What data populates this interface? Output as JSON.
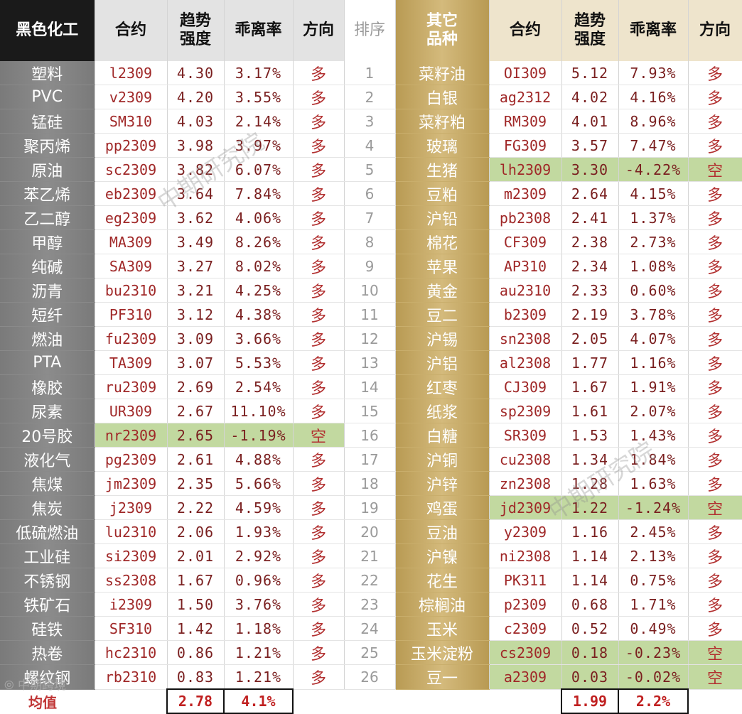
{
  "left": {
    "headers": [
      "黑色化工",
      "合约",
      "趋势\n强度",
      "乖离率",
      "方向"
    ],
    "rows": [
      {
        "name": "塑料",
        "code": "l2309",
        "strength": "4.30",
        "dev": "3.17%",
        "dir": "多",
        "hl": false
      },
      {
        "name": "PVC",
        "code": "v2309",
        "strength": "4.20",
        "dev": "3.55%",
        "dir": "多",
        "hl": false
      },
      {
        "name": "锰硅",
        "code": "SM310",
        "strength": "4.03",
        "dev": "2.14%",
        "dir": "多",
        "hl": false
      },
      {
        "name": "聚丙烯",
        "code": "pp2309",
        "strength": "3.98",
        "dev": "3.97%",
        "dir": "多",
        "hl": false
      },
      {
        "name": "原油",
        "code": "sc2309",
        "strength": "3.82",
        "dev": "6.07%",
        "dir": "多",
        "hl": false
      },
      {
        "name": "苯乙烯",
        "code": "eb2309",
        "strength": "3.64",
        "dev": "7.84%",
        "dir": "多",
        "hl": false
      },
      {
        "name": "乙二醇",
        "code": "eg2309",
        "strength": "3.62",
        "dev": "4.06%",
        "dir": "多",
        "hl": false
      },
      {
        "name": "甲醇",
        "code": "MA309",
        "strength": "3.49",
        "dev": "8.26%",
        "dir": "多",
        "hl": false
      },
      {
        "name": "纯碱",
        "code": "SA309",
        "strength": "3.27",
        "dev": "8.02%",
        "dir": "多",
        "hl": false
      },
      {
        "name": "沥青",
        "code": "bu2310",
        "strength": "3.21",
        "dev": "4.25%",
        "dir": "多",
        "hl": false
      },
      {
        "name": "短纤",
        "code": "PF310",
        "strength": "3.12",
        "dev": "4.38%",
        "dir": "多",
        "hl": false
      },
      {
        "name": "燃油",
        "code": "fu2309",
        "strength": "3.09",
        "dev": "3.66%",
        "dir": "多",
        "hl": false
      },
      {
        "name": "PTA",
        "code": "TA309",
        "strength": "3.07",
        "dev": "5.53%",
        "dir": "多",
        "hl": false
      },
      {
        "name": "橡胶",
        "code": "ru2309",
        "strength": "2.69",
        "dev": "2.54%",
        "dir": "多",
        "hl": false
      },
      {
        "name": "尿素",
        "code": "UR309",
        "strength": "2.67",
        "dev": "11.10%",
        "dir": "多",
        "hl": false
      },
      {
        "name": "20号胶",
        "code": "nr2309",
        "strength": "2.65",
        "dev": "-1.19%",
        "dir": "空",
        "hl": true
      },
      {
        "name": "液化气",
        "code": "pg2309",
        "strength": "2.61",
        "dev": "4.88%",
        "dir": "多",
        "hl": false
      },
      {
        "name": "焦煤",
        "code": "jm2309",
        "strength": "2.35",
        "dev": "5.66%",
        "dir": "多",
        "hl": false
      },
      {
        "name": "焦炭",
        "code": "j2309",
        "strength": "2.22",
        "dev": "4.59%",
        "dir": "多",
        "hl": false
      },
      {
        "name": "低硫燃油",
        "code": "lu2310",
        "strength": "2.06",
        "dev": "1.93%",
        "dir": "多",
        "hl": false
      },
      {
        "name": "工业硅",
        "code": "si2309",
        "strength": "2.01",
        "dev": "2.92%",
        "dir": "多",
        "hl": false
      },
      {
        "name": "不锈钢",
        "code": "ss2308",
        "strength": "1.67",
        "dev": "0.96%",
        "dir": "多",
        "hl": false
      },
      {
        "name": "铁矿石",
        "code": "i2309",
        "strength": "1.50",
        "dev": "3.76%",
        "dir": "多",
        "hl": false
      },
      {
        "name": "硅铁",
        "code": "SF310",
        "strength": "1.42",
        "dev": "1.18%",
        "dir": "多",
        "hl": false
      },
      {
        "name": "热卷",
        "code": "hc2310",
        "strength": "0.86",
        "dev": "1.21%",
        "dir": "多",
        "hl": false
      },
      {
        "name": "螺纹钢",
        "code": "rb2310",
        "strength": "0.83",
        "dev": "1.21%",
        "dir": "多",
        "hl": false
      }
    ],
    "avg_label": "均值",
    "avg_strength": "2.78",
    "avg_dev": "4.1%"
  },
  "rank_header": "排序",
  "ranks": [
    "1",
    "2",
    "3",
    "4",
    "5",
    "6",
    "7",
    "8",
    "9",
    "10",
    "11",
    "12",
    "13",
    "14",
    "15",
    "16",
    "17",
    "18",
    "19",
    "20",
    "21",
    "22",
    "23",
    "24",
    "25",
    "26"
  ],
  "right": {
    "headers": [
      "其它\n品种",
      "合约",
      "趋势\n强度",
      "乖离率",
      "方向"
    ],
    "rows": [
      {
        "name": "菜籽油",
        "code": "OI309",
        "strength": "5.12",
        "dev": "7.93%",
        "dir": "多",
        "hl": false
      },
      {
        "name": "白银",
        "code": "ag2312",
        "strength": "4.02",
        "dev": "4.16%",
        "dir": "多",
        "hl": false
      },
      {
        "name": "菜籽粕",
        "code": "RM309",
        "strength": "4.01",
        "dev": "8.96%",
        "dir": "多",
        "hl": false
      },
      {
        "name": "玻璃",
        "code": "FG309",
        "strength": "3.57",
        "dev": "7.47%",
        "dir": "多",
        "hl": false
      },
      {
        "name": "生猪",
        "code": "lh2309",
        "strength": "3.30",
        "dev": "-4.22%",
        "dir": "空",
        "hl": true
      },
      {
        "name": "豆粕",
        "code": "m2309",
        "strength": "2.64",
        "dev": "4.15%",
        "dir": "多",
        "hl": false
      },
      {
        "name": "沪铅",
        "code": "pb2308",
        "strength": "2.41",
        "dev": "1.37%",
        "dir": "多",
        "hl": false
      },
      {
        "name": "棉花",
        "code": "CF309",
        "strength": "2.38",
        "dev": "2.73%",
        "dir": "多",
        "hl": false
      },
      {
        "name": "苹果",
        "code": "AP310",
        "strength": "2.34",
        "dev": "1.08%",
        "dir": "多",
        "hl": false
      },
      {
        "name": "黄金",
        "code": "au2310",
        "strength": "2.33",
        "dev": "0.60%",
        "dir": "多",
        "hl": false
      },
      {
        "name": "豆二",
        "code": "b2309",
        "strength": "2.19",
        "dev": "3.78%",
        "dir": "多",
        "hl": false
      },
      {
        "name": "沪锡",
        "code": "sn2308",
        "strength": "2.05",
        "dev": "4.07%",
        "dir": "多",
        "hl": false
      },
      {
        "name": "沪铝",
        "code": "al2308",
        "strength": "1.77",
        "dev": "1.16%",
        "dir": "多",
        "hl": false
      },
      {
        "name": "红枣",
        "code": "CJ309",
        "strength": "1.67",
        "dev": "1.91%",
        "dir": "多",
        "hl": false
      },
      {
        "name": "纸浆",
        "code": "sp2309",
        "strength": "1.61",
        "dev": "2.07%",
        "dir": "多",
        "hl": false
      },
      {
        "name": "白糖",
        "code": "SR309",
        "strength": "1.53",
        "dev": "1.43%",
        "dir": "多",
        "hl": false
      },
      {
        "name": "沪铜",
        "code": "cu2308",
        "strength": "1.34",
        "dev": "1.84%",
        "dir": "多",
        "hl": false
      },
      {
        "name": "沪锌",
        "code": "zn2308",
        "strength": "1.28",
        "dev": "1.63%",
        "dir": "多",
        "hl": false
      },
      {
        "name": "鸡蛋",
        "code": "jd2309",
        "strength": "1.22",
        "dev": "-1.24%",
        "dir": "空",
        "hl": true
      },
      {
        "name": "豆油",
        "code": "y2309",
        "strength": "1.16",
        "dev": "2.45%",
        "dir": "多",
        "hl": false
      },
      {
        "name": "沪镍",
        "code": "ni2308",
        "strength": "1.14",
        "dev": "2.13%",
        "dir": "多",
        "hl": false
      },
      {
        "name": "花生",
        "code": "PK311",
        "strength": "1.14",
        "dev": "0.75%",
        "dir": "多",
        "hl": false
      },
      {
        "name": "棕榈油",
        "code": "p2309",
        "strength": "0.68",
        "dev": "1.71%",
        "dir": "多",
        "hl": false
      },
      {
        "name": "玉米",
        "code": "c2309",
        "strength": "0.52",
        "dev": "0.49%",
        "dir": "多",
        "hl": false
      },
      {
        "name": "玉米淀粉",
        "code": "cs2309",
        "strength": "0.18",
        "dev": "-0.23%",
        "dir": "空",
        "hl": true
      },
      {
        "name": "豆一",
        "code": "a2309",
        "strength": "0.03",
        "dev": "-0.02%",
        "dir": "空",
        "hl": true
      }
    ],
    "avg_strength": "1.99",
    "avg_dev": "2.2%"
  },
  "watermarks": [
    "中期研究院",
    "中期研究院"
  ],
  "logo_text": "中期跨境"
}
